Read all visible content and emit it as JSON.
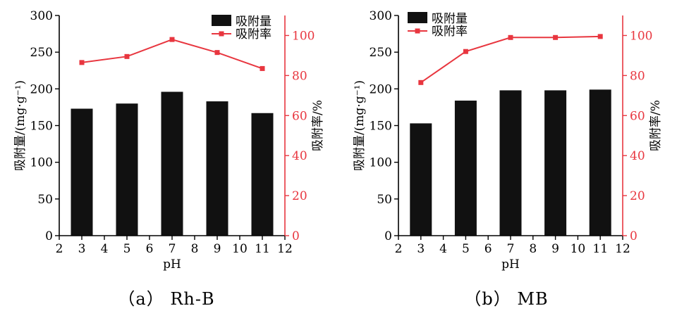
{
  "colors": {
    "bar": "#111111",
    "line": "#e8363f",
    "axis": "#000000",
    "right_axis": "#e8363f"
  },
  "chart_data": [
    {
      "type": "bar",
      "caption": "（a） Rh-B",
      "xlabel": "pH",
      "ylabel": "吸附量/(mg·g⁻¹)",
      "y2label": "吸附率/%",
      "xlim": [
        2,
        12
      ],
      "ylim": [
        0,
        300
      ],
      "y2lim": [
        0,
        110
      ],
      "xticks": [
        "2",
        "3",
        "4",
        "5",
        "6",
        "7",
        "8",
        "9",
        "10",
        "11",
        "12"
      ],
      "yticks": [
        "0",
        "50",
        "100",
        "150",
        "200",
        "250",
        "300"
      ],
      "y2ticks": [
        "0",
        "20",
        "40",
        "60",
        "80",
        "100"
      ],
      "legend": [
        "吸附量",
        "吸附率"
      ],
      "legend_position": "top-right",
      "x": [
        3,
        5,
        7,
        9,
        11
      ],
      "series": [
        {
          "name": "吸附量",
          "type": "bar",
          "axis": "left",
          "values": [
            173,
            180,
            196,
            183,
            167
          ]
        },
        {
          "name": "吸附率",
          "type": "line",
          "axis": "right",
          "values": [
            86.5,
            89.5,
            98,
            91.5,
            83.5
          ]
        }
      ]
    },
    {
      "type": "bar",
      "caption": "（b） MB",
      "xlabel": "pH",
      "ylabel": "吸附量/(mg·g⁻¹)",
      "y2label": "吸附率/%",
      "xlim": [
        2,
        12
      ],
      "ylim": [
        0,
        300
      ],
      "y2lim": [
        0,
        110
      ],
      "xticks": [
        "2",
        "3",
        "4",
        "5",
        "6",
        "7",
        "8",
        "9",
        "10",
        "11",
        "12"
      ],
      "yticks": [
        "0",
        "50",
        "100",
        "150",
        "200",
        "250",
        "300"
      ],
      "y2ticks": [
        "0",
        "20",
        "40",
        "60",
        "80",
        "100"
      ],
      "legend": [
        "吸附量",
        "吸附率"
      ],
      "legend_position": "top-left",
      "x": [
        3,
        5,
        7,
        9,
        11
      ],
      "series": [
        {
          "name": "吸附量",
          "type": "bar",
          "axis": "left",
          "values": [
            153,
            184,
            198,
            198,
            199
          ]
        },
        {
          "name": "吸附率",
          "type": "line",
          "axis": "right",
          "values": [
            76.5,
            92,
            99,
            99,
            99.5
          ]
        }
      ]
    }
  ]
}
